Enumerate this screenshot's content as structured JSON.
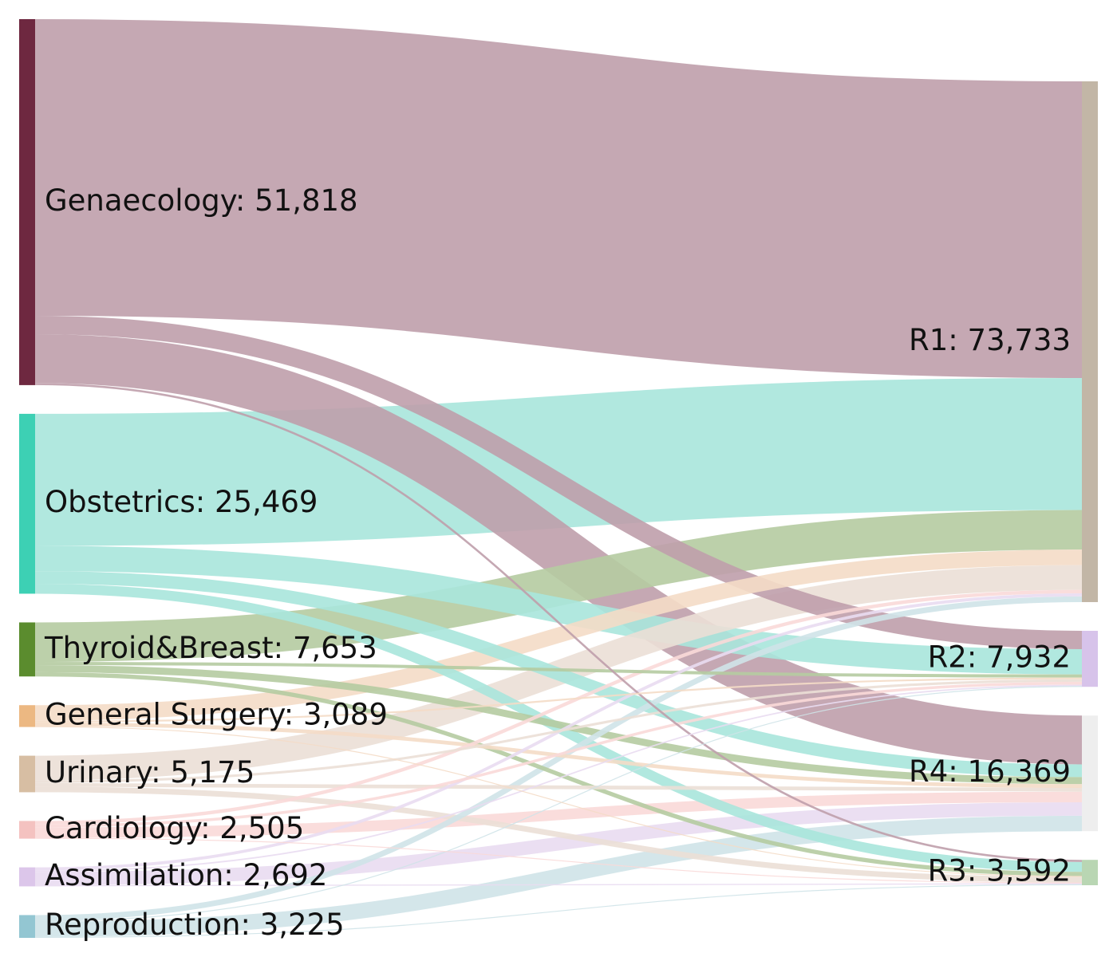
{
  "chart_data": {
    "type": "sankey",
    "value_format": "thousands-comma",
    "sources": [
      {
        "name": "Genaecology",
        "value": 51818,
        "color": "#6e2840",
        "link_color": "#bf9fab"
      },
      {
        "name": "Obstetrics",
        "value": 25469,
        "color": "#3dd0b4",
        "link_color": "#a8e6dc"
      },
      {
        "name": "Thyroid&Breast",
        "value": 7653,
        "color": "#5b8c2e",
        "link_color": "#b5cba1"
      },
      {
        "name": "General Surgery",
        "value": 3089,
        "color": "#ecb882",
        "link_color": "#f4dcc6"
      },
      {
        "name": "Urinary",
        "value": 5175,
        "color": "#d7bea3",
        "link_color": "#ebdfd6"
      },
      {
        "name": "Cardiology",
        "value": 2505,
        "color": "#f4c2c0",
        "link_color": "#fad9d8"
      },
      {
        "name": "Assimilation",
        "value": 2692,
        "color": "#dcc6ea",
        "link_color": "#e9dbf1"
      },
      {
        "name": "Reproduction",
        "value": 3225,
        "color": "#93c6d2",
        "link_color": "#cfe3e8"
      }
    ],
    "targets": [
      {
        "name": "R1",
        "value": 73733,
        "color": "#c2b6a6"
      },
      {
        "name": "R2",
        "value": 7932,
        "color": "#d7c3ea"
      },
      {
        "name": "R4",
        "value": 16369,
        "color": "#eeeeee"
      },
      {
        "name": "R3",
        "value": 3592,
        "color": "#b9d6b3"
      }
    ],
    "links": [
      {
        "source": "Genaecology",
        "target": "R1",
        "value": 42000
      },
      {
        "source": "Genaecology",
        "target": "R2",
        "value": 2600
      },
      {
        "source": "Genaecology",
        "target": "R4",
        "value": 6918
      },
      {
        "source": "Genaecology",
        "target": "R3",
        "value": 300
      },
      {
        "source": "Obstetrics",
        "target": "R1",
        "value": 18700
      },
      {
        "source": "Obstetrics",
        "target": "R2",
        "value": 3569
      },
      {
        "source": "Obstetrics",
        "target": "R4",
        "value": 1800
      },
      {
        "source": "Obstetrics",
        "target": "R3",
        "value": 1400
      },
      {
        "source": "Thyroid&Breast",
        "target": "R1",
        "value": 5600
      },
      {
        "source": "Thyroid&Breast",
        "target": "R2",
        "value": 450
      },
      {
        "source": "Thyroid&Breast",
        "target": "R4",
        "value": 1000
      },
      {
        "source": "Thyroid&Breast",
        "target": "R3",
        "value": 603
      },
      {
        "source": "General Surgery",
        "target": "R1",
        "value": 2200
      },
      {
        "source": "General Surgery",
        "target": "R2",
        "value": 250
      },
      {
        "source": "General Surgery",
        "target": "R4",
        "value": 539
      },
      {
        "source": "General Surgery",
        "target": "R3",
        "value": 100
      },
      {
        "source": "Urinary",
        "target": "R1",
        "value": 3500
      },
      {
        "source": "Urinary",
        "target": "R2",
        "value": 350
      },
      {
        "source": "Urinary",
        "target": "R4",
        "value": 525
      },
      {
        "source": "Urinary",
        "target": "R3",
        "value": 800
      },
      {
        "source": "Cardiology",
        "target": "R1",
        "value": 500
      },
      {
        "source": "Cardiology",
        "target": "R2",
        "value": 400
      },
      {
        "source": "Cardiology",
        "target": "R4",
        "value": 1500
      },
      {
        "source": "Cardiology",
        "target": "R3",
        "value": 105
      },
      {
        "source": "Assimilation",
        "target": "R1",
        "value": 433
      },
      {
        "source": "Assimilation",
        "target": "R2",
        "value": 200
      },
      {
        "source": "Assimilation",
        "target": "R4",
        "value": 1900
      },
      {
        "source": "Assimilation",
        "target": "R3",
        "value": 159
      },
      {
        "source": "Reproduction",
        "target": "R1",
        "value": 800
      },
      {
        "source": "Reproduction",
        "target": "R2",
        "value": 113
      },
      {
        "source": "Reproduction",
        "target": "R4",
        "value": 2187
      },
      {
        "source": "Reproduction",
        "target": "R3",
        "value": 125
      }
    ]
  }
}
